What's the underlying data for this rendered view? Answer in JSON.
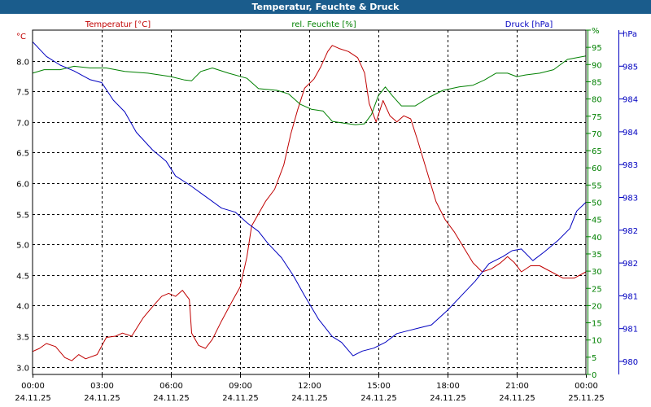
{
  "chart_data": {
    "type": "line",
    "title": "Temperatur, Feuchte & Druck",
    "x_ticks": [
      {
        "time": "00:00",
        "date": "24.11.25"
      },
      {
        "time": "03:00",
        "date": "24.11.25"
      },
      {
        "time": "06:00",
        "date": "24.11.25"
      },
      {
        "time": "09:00",
        "date": "24.11.25"
      },
      {
        "time": "12:00",
        "date": "24.11.25"
      },
      {
        "time": "15:00",
        "date": "24.11.25"
      },
      {
        "time": "18:00",
        "date": "24.11.25"
      },
      {
        "time": "21:00",
        "date": "24.11.25"
      },
      {
        "time": "00:00",
        "date": "25.11.25"
      }
    ],
    "xlim_hours": [
      0,
      24
    ],
    "axes": {
      "temperature": {
        "unit": "°C",
        "ylim": [
          2.875,
          8.5
        ],
        "ticks": [
          "3.0",
          "3.5",
          "4.0",
          "4.5",
          "5.0",
          "5.5",
          "6.0",
          "6.5",
          "7.0",
          "7.5",
          "8.0"
        ]
      },
      "humidity": {
        "unit": "%",
        "ylim": [
          0,
          100
        ],
        "ticks": [
          "0",
          "5",
          "10",
          "15",
          "20",
          "25",
          "30",
          "35",
          "40",
          "45",
          "50",
          "55",
          "60",
          "65",
          "70",
          "75",
          "80",
          "85",
          "90",
          "95",
          "%"
        ]
      },
      "pressure": {
        "unit": "hPa",
        "ylim": [
          979.6,
          985.5
        ],
        "ticks": [
          "980",
          "981",
          "981",
          "982",
          "982",
          "983",
          "983",
          "984",
          "984",
          "985",
          "hPa"
        ]
      }
    },
    "series": [
      {
        "name": "Temperatur [°C]",
        "axis": "temperature",
        "color": "#c00000",
        "points": [
          [
            0,
            3.25
          ],
          [
            0.3,
            3.3
          ],
          [
            0.6,
            3.38
          ],
          [
            1,
            3.33
          ],
          [
            1.4,
            3.15
          ],
          [
            1.7,
            3.1
          ],
          [
            2,
            3.2
          ],
          [
            2.3,
            3.13
          ],
          [
            2.8,
            3.2
          ],
          [
            3.2,
            3.48
          ],
          [
            3.6,
            3.5
          ],
          [
            3.9,
            3.55
          ],
          [
            4.3,
            3.5
          ],
          [
            4.8,
            3.8
          ],
          [
            5.2,
            3.98
          ],
          [
            5.6,
            4.15
          ],
          [
            5.9,
            4.2
          ],
          [
            6.2,
            4.15
          ],
          [
            6.5,
            4.25
          ],
          [
            6.8,
            4.1
          ],
          [
            6.9,
            3.55
          ],
          [
            7.2,
            3.35
          ],
          [
            7.5,
            3.3
          ],
          [
            7.8,
            3.45
          ],
          [
            8.2,
            3.75
          ],
          [
            8.7,
            4.1
          ],
          [
            9,
            4.3
          ],
          [
            9.3,
            4.8
          ],
          [
            9.5,
            5.3
          ],
          [
            9.8,
            5.5
          ],
          [
            10.1,
            5.7
          ],
          [
            10.5,
            5.9
          ],
          [
            10.9,
            6.3
          ],
          [
            11.2,
            6.8
          ],
          [
            11.5,
            7.2
          ],
          [
            11.8,
            7.55
          ],
          [
            12.2,
            7.7
          ],
          [
            12.5,
            7.9
          ],
          [
            12.8,
            8.15
          ],
          [
            13.0,
            8.25
          ],
          [
            13.3,
            8.2
          ],
          [
            13.7,
            8.15
          ],
          [
            14.1,
            8.05
          ],
          [
            14.4,
            7.8
          ],
          [
            14.6,
            7.3
          ],
          [
            14.9,
            7.0
          ],
          [
            15.2,
            7.35
          ],
          [
            15.5,
            7.1
          ],
          [
            15.8,
            7.0
          ],
          [
            16.1,
            7.1
          ],
          [
            16.4,
            7.05
          ],
          [
            16.7,
            6.7
          ],
          [
            17.1,
            6.2
          ],
          [
            17.5,
            5.7
          ],
          [
            17.9,
            5.4
          ],
          [
            18.3,
            5.2
          ],
          [
            18.7,
            4.95
          ],
          [
            19.1,
            4.7
          ],
          [
            19.5,
            4.55
          ],
          [
            19.9,
            4.6
          ],
          [
            20.3,
            4.7
          ],
          [
            20.6,
            4.8
          ],
          [
            20.9,
            4.7
          ],
          [
            21.2,
            4.55
          ],
          [
            21.6,
            4.65
          ],
          [
            22.0,
            4.65
          ],
          [
            22.5,
            4.55
          ],
          [
            23.0,
            4.45
          ],
          [
            23.5,
            4.45
          ],
          [
            24,
            4.55
          ]
        ]
      },
      {
        "name": "rel. Feuchte [%]",
        "axis": "humidity",
        "color": "#008000",
        "points": [
          [
            0,
            87.5
          ],
          [
            0.5,
            88.5
          ],
          [
            1.2,
            88.5
          ],
          [
            1.8,
            89.5
          ],
          [
            2.5,
            89.0
          ],
          [
            3.2,
            89.0
          ],
          [
            4,
            88.0
          ],
          [
            5,
            87.5
          ],
          [
            6,
            86.5
          ],
          [
            6.6,
            85.5
          ],
          [
            6.9,
            85.3
          ],
          [
            7.3,
            88.0
          ],
          [
            7.8,
            89.0
          ],
          [
            8.5,
            87.5
          ],
          [
            9.3,
            86.0
          ],
          [
            9.8,
            83.0
          ],
          [
            10.6,
            82.5
          ],
          [
            11.1,
            81.5
          ],
          [
            11.6,
            78.5
          ],
          [
            12.1,
            77.0
          ],
          [
            12.6,
            76.5
          ],
          [
            13,
            73.5
          ],
          [
            13.5,
            73.0
          ],
          [
            14,
            72.5
          ],
          [
            14.4,
            72.8
          ],
          [
            14.7,
            75.5
          ],
          [
            15.0,
            81.0
          ],
          [
            15.3,
            83.5
          ],
          [
            15.6,
            81.0
          ],
          [
            16.0,
            78.0
          ],
          [
            16.6,
            78.0
          ],
          [
            17.2,
            80.5
          ],
          [
            17.8,
            82.5
          ],
          [
            18.5,
            83.5
          ],
          [
            19.1,
            84.0
          ],
          [
            19.6,
            85.5
          ],
          [
            20.1,
            87.5
          ],
          [
            20.6,
            87.5
          ],
          [
            21.0,
            86.5
          ],
          [
            21.4,
            87.0
          ],
          [
            22.0,
            87.5
          ],
          [
            22.6,
            88.5
          ],
          [
            23.2,
            91.5
          ],
          [
            24,
            92.5
          ]
        ]
      },
      {
        "name": "Druck [hPa]",
        "axis": "pressure",
        "color": "#0000c0",
        "points": [
          [
            0,
            985.3
          ],
          [
            0.6,
            985.05
          ],
          [
            1.2,
            984.9
          ],
          [
            1.8,
            984.8
          ],
          [
            2.5,
            984.65
          ],
          [
            3.0,
            984.6
          ],
          [
            3.5,
            984.3
          ],
          [
            4.0,
            984.1
          ],
          [
            4.5,
            983.75
          ],
          [
            5.2,
            983.45
          ],
          [
            5.8,
            983.25
          ],
          [
            6.2,
            983.0
          ],
          [
            6.8,
            982.85
          ],
          [
            7.5,
            982.65
          ],
          [
            8.2,
            982.45
          ],
          [
            8.8,
            982.38
          ],
          [
            9.3,
            982.2
          ],
          [
            9.8,
            982.05
          ],
          [
            10.2,
            981.85
          ],
          [
            10.8,
            981.6
          ],
          [
            11.3,
            981.3
          ],
          [
            11.8,
            980.95
          ],
          [
            12.4,
            980.55
          ],
          [
            13,
            980.25
          ],
          [
            13.4,
            980.15
          ],
          [
            13.9,
            979.92
          ],
          [
            14.3,
            980.0
          ],
          [
            14.8,
            980.05
          ],
          [
            15.3,
            980.15
          ],
          [
            15.8,
            980.3
          ],
          [
            16.3,
            980.35
          ],
          [
            16.8,
            980.4
          ],
          [
            17.3,
            980.45
          ],
          [
            18,
            980.7
          ],
          [
            18.6,
            980.95
          ],
          [
            19.2,
            981.2
          ],
          [
            19.8,
            981.5
          ],
          [
            20.4,
            981.62
          ],
          [
            20.8,
            981.72
          ],
          [
            21.2,
            981.75
          ],
          [
            21.7,
            981.55
          ],
          [
            22.2,
            981.7
          ],
          [
            22.8,
            981.9
          ],
          [
            23.3,
            982.1
          ],
          [
            23.6,
            982.4
          ],
          [
            24,
            982.55
          ]
        ]
      }
    ],
    "legend": [
      "Temperatur [°C]",
      "rel. Feuchte [%]",
      "Druck [hPa]"
    ]
  }
}
